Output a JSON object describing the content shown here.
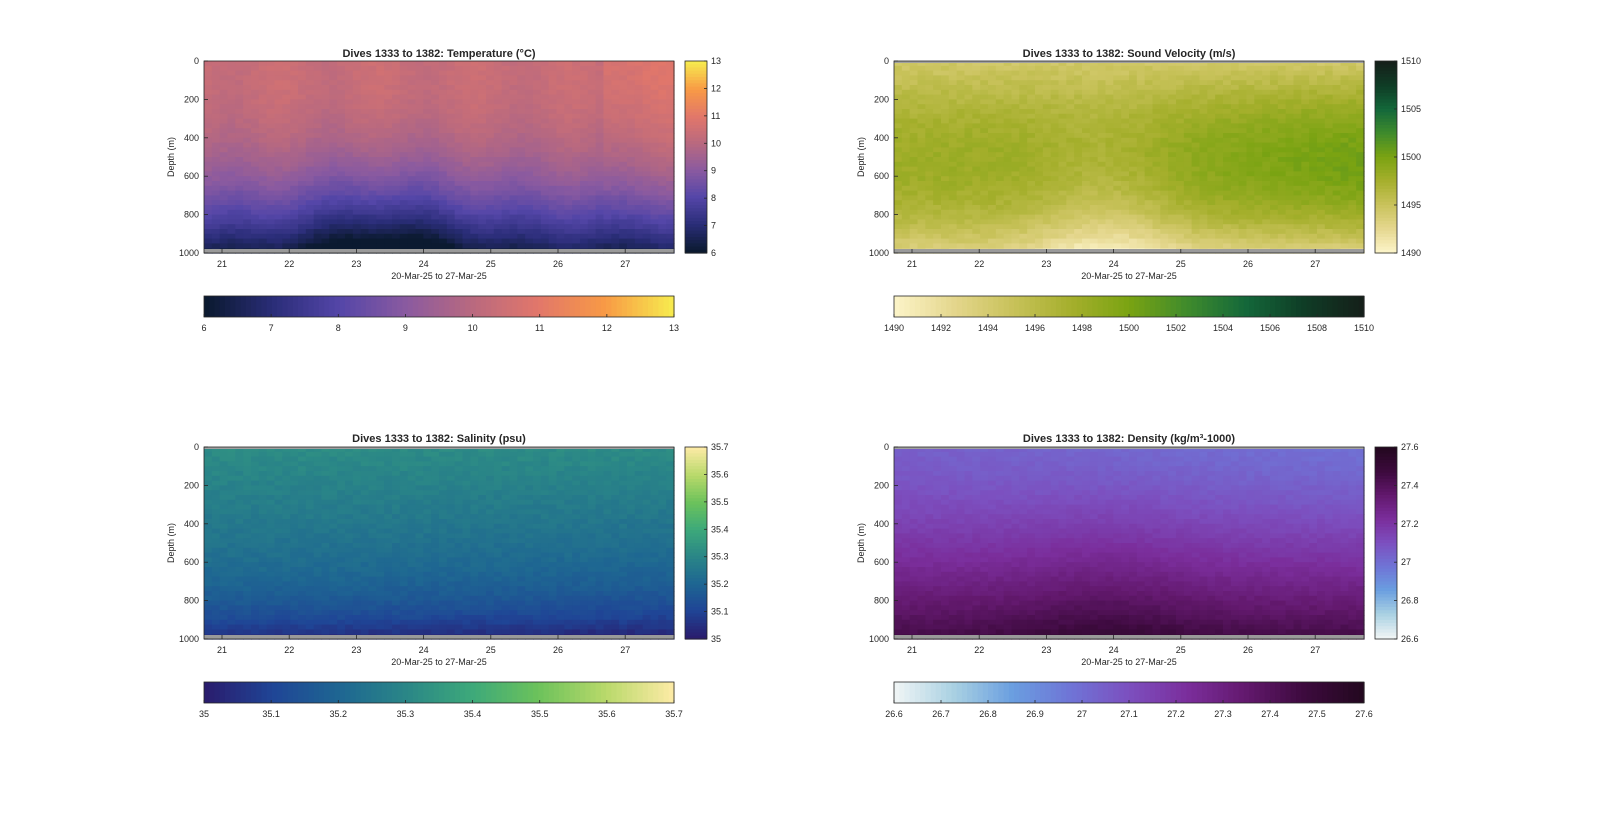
{
  "chart_data": [
    {
      "type": "heatmap",
      "title": "Dives 1333 to 1382: Temperature (°C)",
      "xlabel": "20-Mar-25 to 27-Mar-25",
      "ylabel": "Depth (m)",
      "x_ticks": [
        "21",
        "22",
        "23",
        "24",
        "25",
        "26",
        "27"
      ],
      "y_ticks": [
        "0",
        "200",
        "400",
        "600",
        "800",
        "1000"
      ],
      "ylim": [
        0,
        1000
      ],
      "colorbar": {
        "ticks": [
          "6",
          "7",
          "8",
          "9",
          "10",
          "11",
          "12",
          "13"
        ],
        "range": [
          6,
          13
        ]
      },
      "horizontal_colorbar": {
        "ticks": [
          "6",
          "7",
          "8",
          "9",
          "10",
          "11",
          "12",
          "13"
        ],
        "range": [
          6,
          13
        ]
      },
      "colors": [
        "#0b1a30",
        "#2a2d78",
        "#5446a8",
        "#8a5aa0",
        "#b9697f",
        "#e2776a",
        "#f89a45",
        "#f7e94e"
      ]
    },
    {
      "type": "heatmap",
      "title": "Dives 1333 to 1382: Sound Velocity (m/s)",
      "xlabel": "20-Mar-25 to 27-Mar-25",
      "ylabel": "Depth (m)",
      "x_ticks": [
        "21",
        "22",
        "23",
        "24",
        "25",
        "26",
        "27"
      ],
      "y_ticks": [
        "0",
        "200",
        "400",
        "600",
        "800",
        "1000"
      ],
      "ylim": [
        0,
        1000
      ],
      "colorbar": {
        "ticks": [
          "1490",
          "1495",
          "1500",
          "1505",
          "1510"
        ],
        "range": [
          1490,
          1510
        ]
      },
      "horizontal_colorbar": {
        "ticks": [
          "1490",
          "1492",
          "1494",
          "1496",
          "1498",
          "1500",
          "1502",
          "1504",
          "1506",
          "1508",
          "1510"
        ],
        "range": [
          1490,
          1510
        ]
      },
      "colors": [
        "#fbf3c6",
        "#e4d68c",
        "#c8c25a",
        "#a5af2c",
        "#7aa312",
        "#3f8b2c",
        "#14683a",
        "#0f3d26",
        "#15201a"
      ]
    },
    {
      "type": "heatmap",
      "title": "Dives 1333 to 1382: Salinity (psu)",
      "xlabel": "20-Mar-25 to 27-Mar-25",
      "ylabel": "Depth (m)",
      "x_ticks": [
        "21",
        "22",
        "23",
        "24",
        "25",
        "26",
        "27"
      ],
      "y_ticks": [
        "0",
        "200",
        "400",
        "600",
        "800",
        "1000"
      ],
      "ylim": [
        0,
        1000
      ],
      "colorbar": {
        "ticks": [
          "35",
          "35.1",
          "35.2",
          "35.3",
          "35.4",
          "35.5",
          "35.6",
          "35.7"
        ],
        "range": [
          35,
          35.7
        ]
      },
      "horizontal_colorbar": {
        "ticks": [
          "35",
          "35.1",
          "35.2",
          "35.3",
          "35.4",
          "35.5",
          "35.6",
          "35.7"
        ],
        "range": [
          35,
          35.7
        ]
      },
      "colors": [
        "#2a1d6e",
        "#1f4596",
        "#1e6692",
        "#2a8687",
        "#3da97a",
        "#6cc25b",
        "#b8d96a",
        "#fbeaa4"
      ]
    },
    {
      "type": "heatmap",
      "title": "Dives 1333 to 1382: Density (kg/m³-1000)",
      "xlabel": "20-Mar-25 to 27-Mar-25",
      "ylabel": "Depth (m)",
      "x_ticks": [
        "21",
        "22",
        "23",
        "24",
        "25",
        "26",
        "27"
      ],
      "y_ticks": [
        "0",
        "200",
        "400",
        "600",
        "800",
        "1000"
      ],
      "ylim": [
        0,
        1000
      ],
      "colorbar": {
        "ticks": [
          "26.6",
          "26.8",
          "27",
          "27.2",
          "27.4",
          "27.6"
        ],
        "range": [
          26.6,
          27.6
        ]
      },
      "horizontal_colorbar": {
        "ticks": [
          "26.6",
          "26.7",
          "26.8",
          "26.9",
          "27",
          "27.1",
          "27.2",
          "27.3",
          "27.4",
          "27.5",
          "27.6"
        ],
        "range": [
          26.6,
          27.6
        ]
      },
      "colors": [
        "#eef4f5",
        "#a8d0e2",
        "#6a9ee0",
        "#6f74d6",
        "#7c4fbf",
        "#7b2e9c",
        "#63196e",
        "#3d0a3e",
        "#240820"
      ]
    }
  ]
}
